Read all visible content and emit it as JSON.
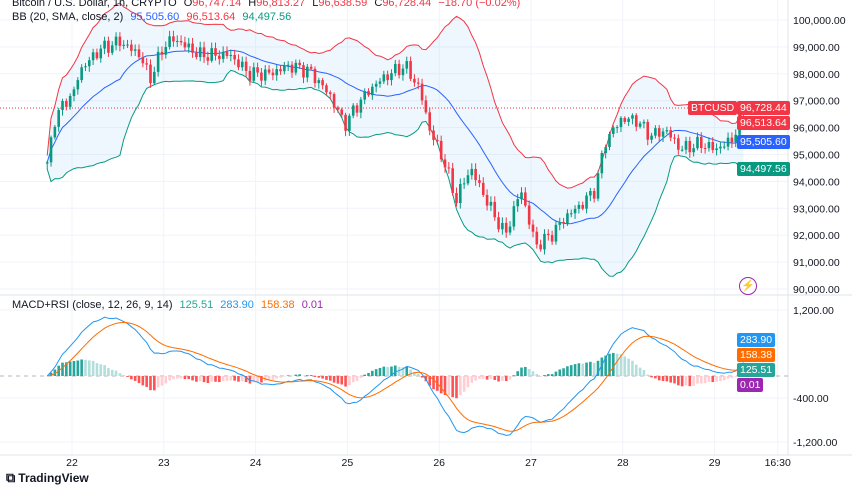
{
  "header": {
    "symbol": "Bitcoin / U.S. Dollar, 1h, CRYPTO",
    "open_label": "O",
    "open": "96,747.14",
    "high_label": "H",
    "high": "96,813.27",
    "low_label": "L",
    "low": "96,638.59",
    "close_label": "C",
    "close": "96,728.44",
    "change": "−18.70 (−0.02%)"
  },
  "bb_legend": {
    "name": "BB (20, SMA, close, 2)",
    "basis": "95,505.60",
    "upper": "96,513.64",
    "lower": "94,497.56"
  },
  "macd_legend": {
    "name": "MACD+RSI (close, 12, 26, 9, 14)",
    "hist": "125.51",
    "macd": "283.90",
    "signal": "158.38",
    "rsi": "0.01"
  },
  "price_tags": {
    "symbol": "BTCUSD",
    "last": "96,728.44",
    "upper": "96,513.64",
    "basis": "95,505.60",
    "lower": "94,497.56"
  },
  "macd_tags": {
    "macd": "283.90",
    "signal": "158.38",
    "hist": "125.51",
    "rsi": "0.01"
  },
  "colors": {
    "up": "#089981",
    "down": "#f23645",
    "basis": "#2962ff",
    "upper": "#f23645",
    "lower": "#089981",
    "macd": "#2196f3",
    "signal": "#ff6d00",
    "rsi": "#9c27b0"
  },
  "logo": "TradingView",
  "chart_data": [
    {
      "type": "candlestick",
      "interval": "1h",
      "ylim": [
        89600,
        100700
      ],
      "y_ticks": [
        "100,000.00",
        "99,000.00",
        "98,000.00",
        "97,000.00",
        "96,000.00",
        "95,000.00",
        "94,000.00",
        "93,000.00",
        "92,000.00",
        "91,000.00",
        "90,000.00"
      ],
      "y_tick_values": [
        100000,
        99000,
        98000,
        97000,
        96000,
        95000,
        94000,
        93000,
        92000,
        91000,
        90000
      ],
      "x_ticks": [
        "22",
        "23",
        "24",
        "25",
        "26",
        "27",
        "28",
        "29",
        "16:30"
      ],
      "x_tick_values": [
        22,
        23,
        24,
        25,
        26,
        27,
        28,
        29,
        29.6875
      ],
      "xlim": [
        21.27,
        29.85
      ],
      "grid": true,
      "close_path": [
        [
          21.73,
          94600
        ],
        [
          21.81,
          96300
        ],
        [
          21.97,
          97200
        ],
        [
          22.0,
          97000
        ],
        [
          22.08,
          98100
        ],
        [
          22.3,
          98900
        ],
        [
          22.52,
          99200
        ],
        [
          22.74,
          98700
        ],
        [
          22.85,
          97800
        ],
        [
          23.01,
          99100
        ],
        [
          23.12,
          99300
        ],
        [
          23.39,
          98700
        ],
        [
          23.72,
          98700
        ],
        [
          23.93,
          98000
        ],
        [
          24.15,
          98000
        ],
        [
          24.37,
          98300
        ],
        [
          24.59,
          98100
        ],
        [
          24.81,
          97200
        ],
        [
          24.97,
          96100
        ],
        [
          25.14,
          97000
        ],
        [
          25.3,
          97600
        ],
        [
          25.46,
          98000
        ],
        [
          25.63,
          98300
        ],
        [
          25.79,
          97400
        ],
        [
          25.9,
          95900
        ],
        [
          26.07,
          94600
        ],
        [
          26.18,
          93300
        ],
        [
          26.34,
          94500
        ],
        [
          26.56,
          93000
        ],
        [
          26.72,
          92000
        ],
        [
          26.89,
          93700
        ],
        [
          27.05,
          91600
        ],
        [
          27.22,
          92000
        ],
        [
          27.38,
          92700
        ],
        [
          27.54,
          93100
        ],
        [
          27.7,
          93700
        ],
        [
          27.81,
          95500
        ],
        [
          27.98,
          96300
        ],
        [
          28.14,
          96300
        ],
        [
          28.3,
          95700
        ],
        [
          28.47,
          95900
        ],
        [
          28.63,
          95200
        ],
        [
          28.85,
          95400
        ],
        [
          29.01,
          95200
        ],
        [
          29.18,
          95500
        ],
        [
          29.34,
          96728.44
        ]
      ]
    },
    {
      "type": "line",
      "pane": "MACD+RSI",
      "ylim": [
        -1450,
        1450
      ],
      "y_ticks": [
        "1,200.00",
        "-400.00",
        "-1,200.00"
      ],
      "y_tick_values": [
        1200,
        -400,
        -1200
      ],
      "series": [
        {
          "name": "MACD"
        },
        {
          "name": "Signal"
        },
        {
          "name": "Histogram"
        }
      ]
    }
  ]
}
